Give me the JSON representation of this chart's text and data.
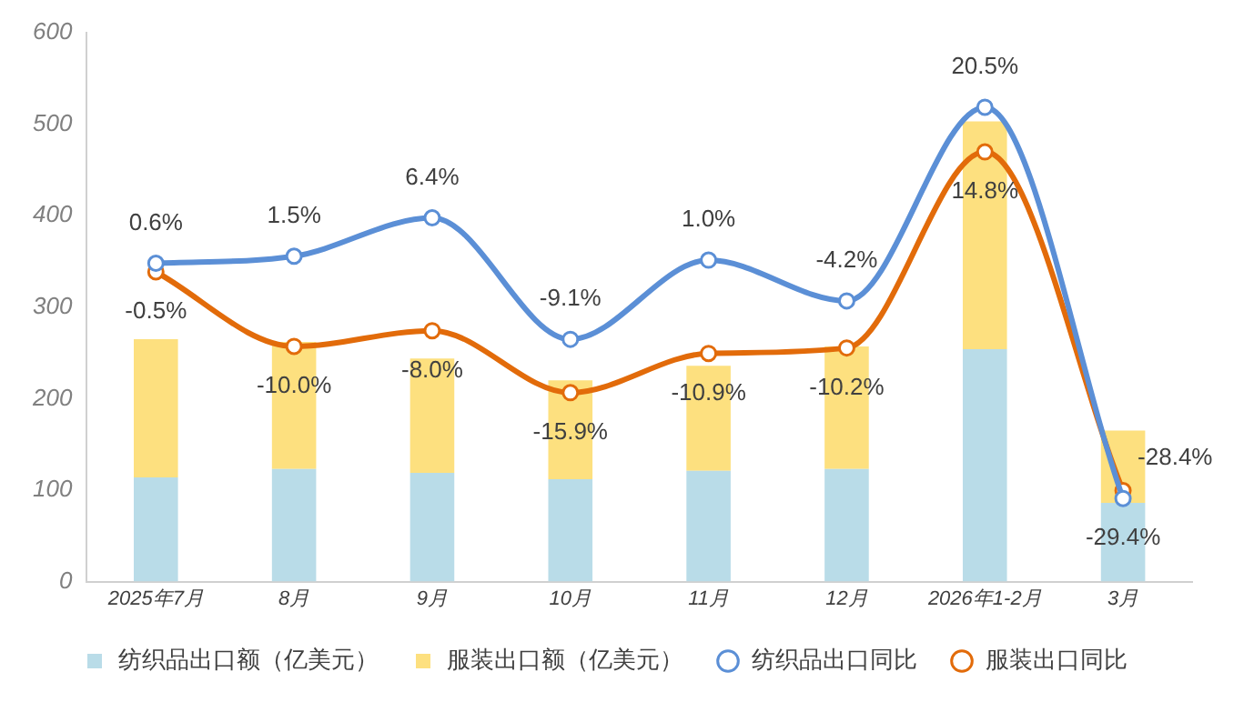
{
  "chart_data": {
    "type": "bar",
    "stacked": true,
    "categories": [
      "2025年7月",
      "8月",
      "9月",
      "10月",
      "11月",
      "12月",
      "2026年1-2月",
      "3月"
    ],
    "series": [
      {
        "name": "纺织品出口额（亿美元）",
        "type": "bar",
        "color": "#b9dce8",
        "values": [
          114,
          123,
          119,
          112,
          121,
          123,
          254,
          86
        ]
      },
      {
        "name": "服装出口额（亿美元）",
        "type": "bar",
        "color": "#fde07f",
        "values": [
          151,
          139,
          125,
          108,
          115,
          134,
          249,
          79
        ]
      },
      {
        "name": "纺织品出口同比",
        "type": "line",
        "axis": "y2",
        "color": "#5b8fd6",
        "values": [
          0.6,
          1.5,
          6.4,
          -9.1,
          1.0,
          -4.2,
          20.5,
          -29.4
        ],
        "value_labels": [
          "0.6%",
          "1.5%",
          "6.4%",
          "-9.1%",
          "1.0%",
          "-4.2%",
          "20.5%",
          "-29.4%"
        ]
      },
      {
        "name": "服装出口同比",
        "type": "line",
        "axis": "y2",
        "color": "#e26b0a",
        "values": [
          -0.5,
          -10.0,
          -8.0,
          -15.9,
          -10.9,
          -10.2,
          14.8,
          -28.4
        ],
        "value_labels": [
          "-0.5%",
          "-10.0%",
          "-8.0%",
          "-15.9%",
          "-10.9%",
          "-10.2%",
          "14.8%",
          "-28.4%"
        ]
      }
    ],
    "ylim": [
      0,
      600
    ],
    "yticks": [
      0,
      100,
      200,
      300,
      400,
      500,
      600
    ],
    "y2lim": [
      -40,
      30
    ],
    "tick_labels": "xy",
    "grid": false,
    "legend": "bottom",
    "marker": "circle",
    "line_style": "solid"
  }
}
